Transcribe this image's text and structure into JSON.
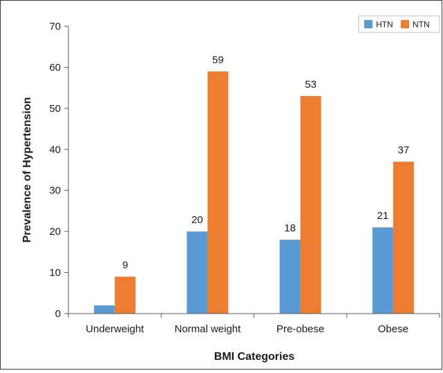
{
  "chart_data": {
    "type": "bar",
    "title": "",
    "xlabel": "BMI Categories",
    "ylabel": "Prevalence of Hypertension",
    "categories": [
      "Underweight",
      "Normal weight",
      "Pre-obese",
      "Obese"
    ],
    "series": [
      {
        "name": "HTN",
        "color": "#5b9bd5",
        "values": [
          2,
          20,
          18,
          21
        ],
        "labels": [
          "",
          "20",
          "18",
          "21"
        ]
      },
      {
        "name": "NTN",
        "color": "#ed7d31",
        "values": [
          9,
          59,
          53,
          37
        ],
        "labels": [
          "9",
          "59",
          "53",
          "37"
        ]
      }
    ],
    "ylim": [
      0,
      70
    ],
    "yticks": [
      "0",
      "10",
      "20",
      "30",
      "40",
      "50",
      "60",
      "70"
    ],
    "grid": false,
    "legend_position": "top-right"
  }
}
